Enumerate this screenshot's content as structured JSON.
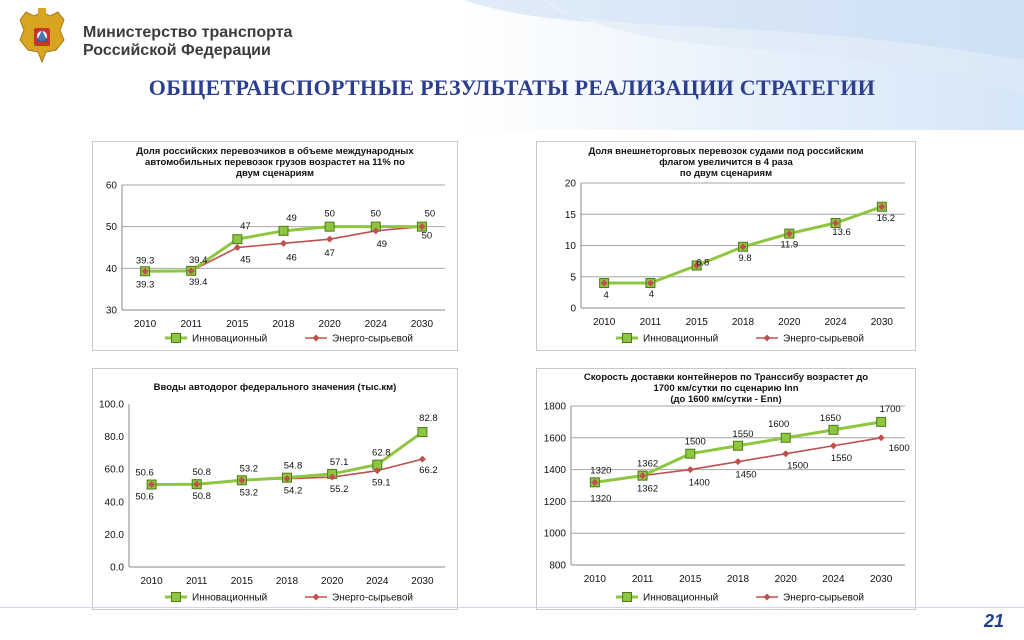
{
  "header": {
    "ministry_line1": "Министерство транспорта",
    "ministry_line2": "Российской Федерации",
    "title": "ОБЩЕТРАНСПОРТНЫЕ РЕЗУЛЬТАТЫ РЕАЛИЗАЦИИ СТРАТЕГИИ"
  },
  "colors": {
    "innovative": "#8dc63f",
    "energy": "#c0504d",
    "title": "#2c3e8f"
  },
  "page_number": "21",
  "chart_data": [
    {
      "type": "line",
      "title_lines": [
        "Доля российских перевозчиков в объеме международных",
        "автомобильных перевозок грузов возрастет на 11%  по",
        "двум сценариям"
      ],
      "categories": [
        "2010",
        "2011",
        "2015",
        "2018",
        "2020",
        "2024",
        "2030"
      ],
      "ylim": [
        30,
        60
      ],
      "yticks": [
        30,
        40,
        50,
        60
      ],
      "ytick_labels": [
        "30",
        "40",
        "50",
        "60"
      ],
      "grid": true,
      "legend": "bottom",
      "series": [
        {
          "name": "Инновационный",
          "values": [
            39.3,
            39.4,
            47,
            49,
            50,
            50,
            50
          ],
          "labels": [
            "39.3",
            "39.4",
            "47",
            "49",
            "50",
            "50",
            "50"
          ]
        },
        {
          "name": "Энерго-сырьевой",
          "values": [
            39.3,
            39.4,
            45,
            46,
            47,
            49,
            50
          ],
          "labels": [
            "39.3",
            "39.4",
            "45",
            "46",
            "47",
            "49",
            "50"
          ]
        }
      ]
    },
    {
      "type": "line",
      "title_lines": [
        "Доля внешнеторговых перевозок судами под российским",
        "флагом  увеличится в 4 раза",
        "по двум сценариям"
      ],
      "categories": [
        "2010",
        "2011",
        "2015",
        "2018",
        "2020",
        "2024",
        "2030"
      ],
      "ylim": [
        0,
        20
      ],
      "yticks": [
        0,
        5,
        10,
        15,
        20
      ],
      "ytick_labels": [
        "0",
        "5",
        "10",
        "15",
        "20"
      ],
      "grid": true,
      "legend": "bottom",
      "series": [
        {
          "name": "Инновационный",
          "values": [
            4,
            4,
            6.8,
            9.8,
            11.9,
            13.6,
            16.2
          ],
          "labels": [
            "4",
            "4",
            "6.8",
            "9.8",
            "11.9",
            "13.6",
            "16.2"
          ]
        },
        {
          "name": "Энерго-сырьевой",
          "values": [
            4,
            4,
            6.8,
            9.8,
            11.9,
            13.6,
            16.2
          ],
          "labels": [
            "",
            "",
            "",
            "",
            "",
            "",
            ""
          ]
        }
      ]
    },
    {
      "type": "line",
      "title_lines": [
        "Вводы автодорог федерального значения (тыс.км)"
      ],
      "categories": [
        "2010",
        "2011",
        "2015",
        "2018",
        "2020",
        "2024",
        "2030"
      ],
      "ylim": [
        0,
        100
      ],
      "yticks": [
        0,
        20,
        40,
        60,
        80,
        100
      ],
      "ytick_labels": [
        "0.0",
        "20.0",
        "40.0",
        "60.0",
        "80.0",
        "100.0"
      ],
      "grid": false,
      "legend": "bottom",
      "series": [
        {
          "name": "Инновационный",
          "values": [
            50.6,
            50.8,
            53.2,
            54.8,
            57.1,
            62.8,
            82.8
          ],
          "labels": [
            "50.6",
            "50.8",
            "53.2",
            "54.8",
            "57.1",
            "62.8",
            "82.8"
          ]
        },
        {
          "name": "Энерго-сырьевой",
          "values": [
            50.6,
            50.8,
            53.2,
            54.2,
            55.2,
            59.1,
            66.2
          ],
          "labels": [
            "50.6",
            "50.8",
            "53.2",
            "54.2",
            "55.2",
            "59.1",
            "66.2"
          ]
        }
      ]
    },
    {
      "type": "line",
      "title_lines": [
        "Скорость доставки контейнеров по Транссибу возрастет до",
        "1700 км/сутки по сценарию Inn",
        "(до 1600 км/сутки - Enn)"
      ],
      "categories": [
        "2010",
        "2011",
        "2015",
        "2018",
        "2020",
        "2024",
        "2030"
      ],
      "ylim": [
        800,
        1800
      ],
      "yticks": [
        800,
        1000,
        1200,
        1400,
        1600,
        1800
      ],
      "ytick_labels": [
        "800",
        "1000",
        "1200",
        "1400",
        "1600",
        "1800"
      ],
      "grid": true,
      "legend": "bottom",
      "series": [
        {
          "name": "Инновационный",
          "values": [
            1320,
            1362,
            1500,
            1550,
            1600,
            1650,
            1700
          ],
          "labels": [
            "1320",
            "1362",
            "1500",
            "1550",
            "1600",
            "1650",
            "1700"
          ]
        },
        {
          "name": "Энерго-сырьевой",
          "values": [
            1320,
            1362,
            1400,
            1450,
            1500,
            1550,
            1600
          ],
          "labels": [
            "1320",
            "1362",
            "1400",
            "1450",
            "1500",
            "1550",
            "1600"
          ]
        }
      ]
    }
  ]
}
